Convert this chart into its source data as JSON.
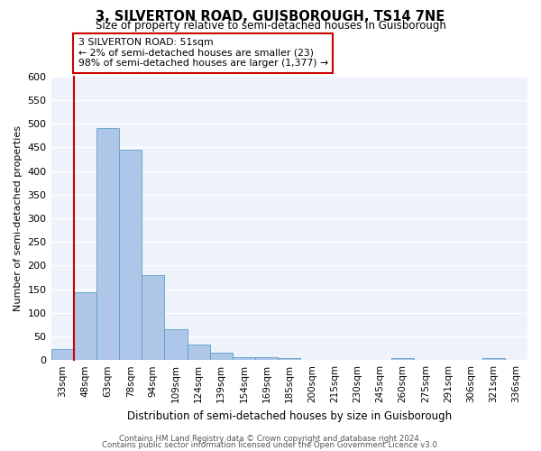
{
  "title": "3, SILVERTON ROAD, GUISBOROUGH, TS14 7NE",
  "subtitle": "Size of property relative to semi-detached houses in Guisborough",
  "xlabel": "Distribution of semi-detached houses by size in Guisborough",
  "ylabel": "Number of semi-detached properties",
  "footer_line1": "Contains HM Land Registry data © Crown copyright and database right 2024.",
  "footer_line2": "Contains public sector information licensed under the Open Government Licence v3.0.",
  "bins": [
    "33sqm",
    "48sqm",
    "63sqm",
    "78sqm",
    "94sqm",
    "109sqm",
    "124sqm",
    "139sqm",
    "154sqm",
    "169sqm",
    "185sqm",
    "200sqm",
    "215sqm",
    "230sqm",
    "245sqm",
    "260sqm",
    "275sqm",
    "291sqm",
    "306sqm",
    "321sqm",
    "336sqm"
  ],
  "values": [
    23,
    143,
    490,
    445,
    180,
    65,
    33,
    16,
    7,
    7,
    5,
    0,
    0,
    0,
    0,
    5,
    0,
    0,
    0,
    5,
    0
  ],
  "bar_color": "#aec6e8",
  "bar_edge_color": "#5a9fc4",
  "property_line_bar_index": 1,
  "annotation_line1": "3 SILVERTON ROAD: 51sqm",
  "annotation_line2": "← 2% of semi-detached houses are smaller (23)",
  "annotation_line3": "98% of semi-detached houses are larger (1,377) →",
  "annotation_box_color": "#ffffff",
  "annotation_box_edge": "#cc0000",
  "property_line_color": "#cc0000",
  "ylim": [
    0,
    600
  ],
  "yticks": [
    0,
    50,
    100,
    150,
    200,
    250,
    300,
    350,
    400,
    450,
    500,
    550,
    600
  ],
  "bg_color": "#eef2fa",
  "grid_color": "#ffffff"
}
